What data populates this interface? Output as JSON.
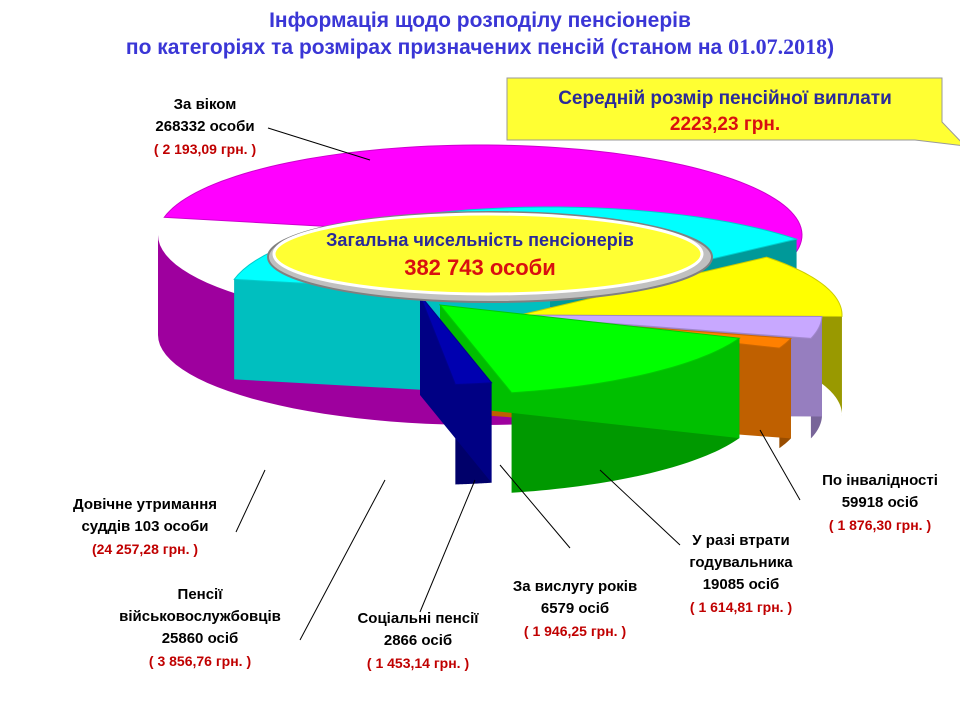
{
  "title_line1": "Інформація щодо розподілу пенсіонерів",
  "title_line2_text": "по категоріях та розмірах призначених пенсій (станом на ",
  "title_date": "01.07.2018",
  "title_close": ")",
  "avg_box": {
    "label": "Середній розмір пенсійної виплати",
    "value": "2223,23 грн."
  },
  "total": {
    "label": "Загальна чисельність пенсіонерів",
    "value": "382 743 особи"
  },
  "colors": {
    "age": "#ff00ff",
    "disability": "#00ffff",
    "survivor": "#ffff00",
    "seniority": "#c8a8ff",
    "social": "#ff8000",
    "military": "#00ff00",
    "judges": "#0000b0",
    "title": "#3a36d6",
    "value_red": "#c00000",
    "callout": "#ffff33"
  },
  "chart_data": {
    "type": "pie",
    "style": "3d-exploded",
    "categories": [
      {
        "key": "age",
        "name_lines": [
          "За віком",
          "268332 особи"
        ],
        "count": 268332,
        "avg": "( 2 193,09 грн. )"
      },
      {
        "key": "disability",
        "name_lines": [
          "По інвалідності",
          "59918 осіб"
        ],
        "count": 59918,
        "avg": "( 1 876,30 грн. )"
      },
      {
        "key": "survivor",
        "name_lines": [
          "У разі втрати",
          "годувальника",
          "19085 осіб"
        ],
        "count": 19085,
        "avg": "( 1 614,81 грн. )"
      },
      {
        "key": "seniority",
        "name_lines": [
          "За вислугу років",
          "6579 осіб"
        ],
        "count": 6579,
        "avg": "( 1 946,25 грн. )"
      },
      {
        "key": "social",
        "name_lines": [
          "Соціальні пенсії",
          "2866 осіб"
        ],
        "count": 2866,
        "avg": "( 1 453,14 грн. )"
      },
      {
        "key": "military",
        "name_lines": [
          "Пенсії",
          "військовослужбовців",
          "25860 осіб"
        ],
        "count": 25860,
        "avg": "( 3 856,76 грн. )"
      },
      {
        "key": "judges",
        "name_lines": [
          "Довічне утримання",
          "суддів 103 особи"
        ],
        "count": 103,
        "avg": "(24 257,28 грн. )"
      }
    ]
  }
}
